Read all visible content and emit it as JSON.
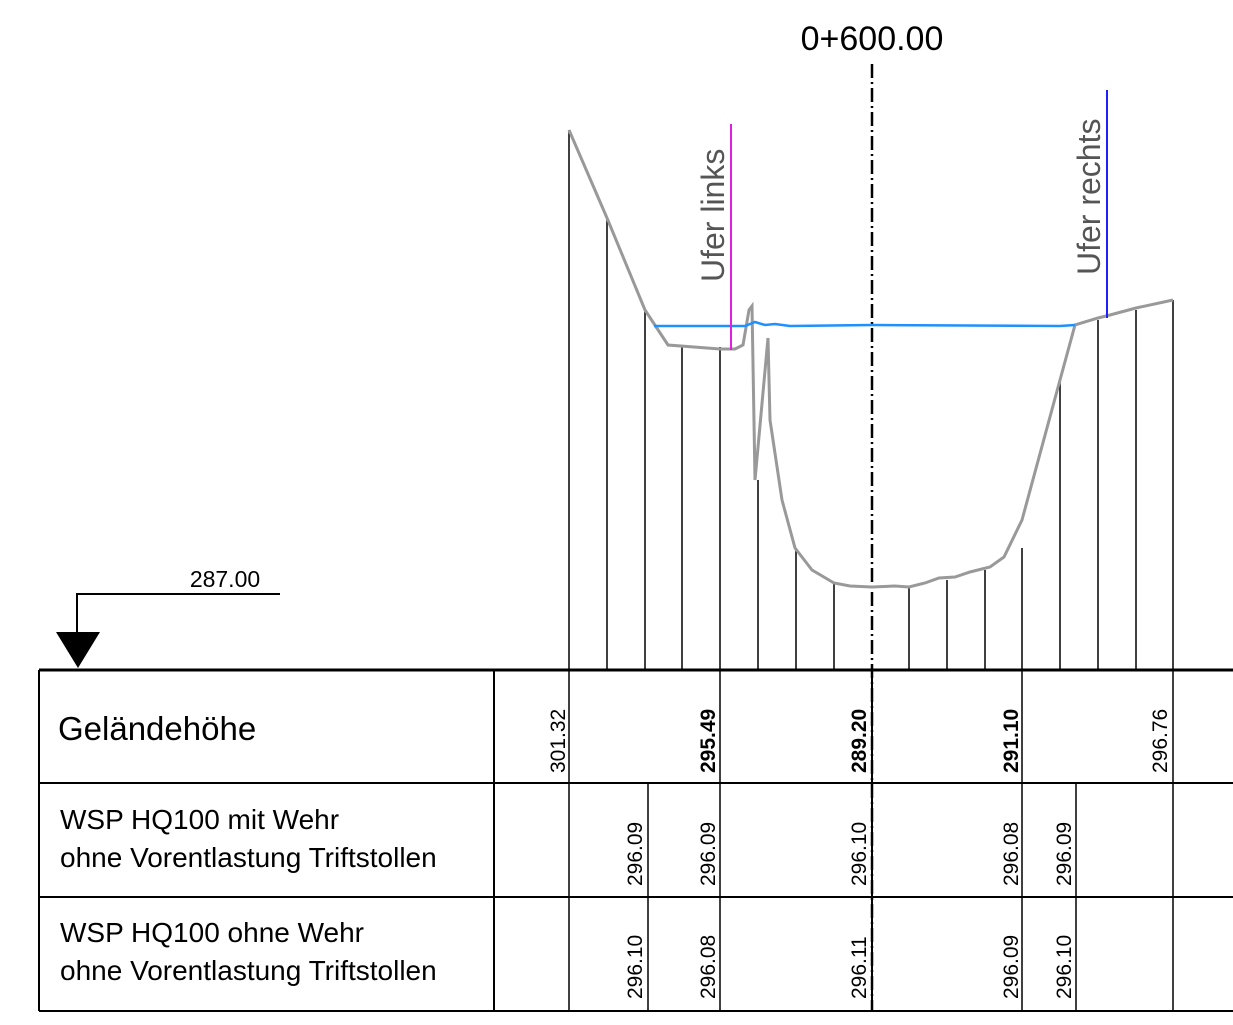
{
  "station": "0+600.00",
  "datum": {
    "elevation": "287.00"
  },
  "bank_labels": {
    "left": "Ufer links",
    "right": "Ufer rechts"
  },
  "table": {
    "rows": [
      {
        "label_lines": [
          "Geländehöhe"
        ]
      },
      {
        "label_lines": [
          "WSP HQ100 mit Wehr",
          "ohne Vorentlastung Triftstollen"
        ]
      },
      {
        "label_lines": [
          "WSP HQ100 ohne Wehr",
          "ohne Vorentlastung Triftstollen"
        ]
      }
    ],
    "gelaendehoehe": [
      "301.32",
      "295.49",
      "289.20",
      "291.10",
      "296.76"
    ],
    "wsp_mit_wehr": [
      "296.09",
      "296.09",
      "296.10",
      "296.08",
      "296.09"
    ],
    "wsp_ohne_wehr": [
      "296.10",
      "296.08",
      "296.11",
      "296.09",
      "296.10"
    ]
  },
  "colors": {
    "terrain": "#999999",
    "water_surface": "#1e90ff",
    "bank_left_marker": "#e020e0",
    "bank_right_marker": "#2020ff",
    "lines": "#000000"
  }
}
